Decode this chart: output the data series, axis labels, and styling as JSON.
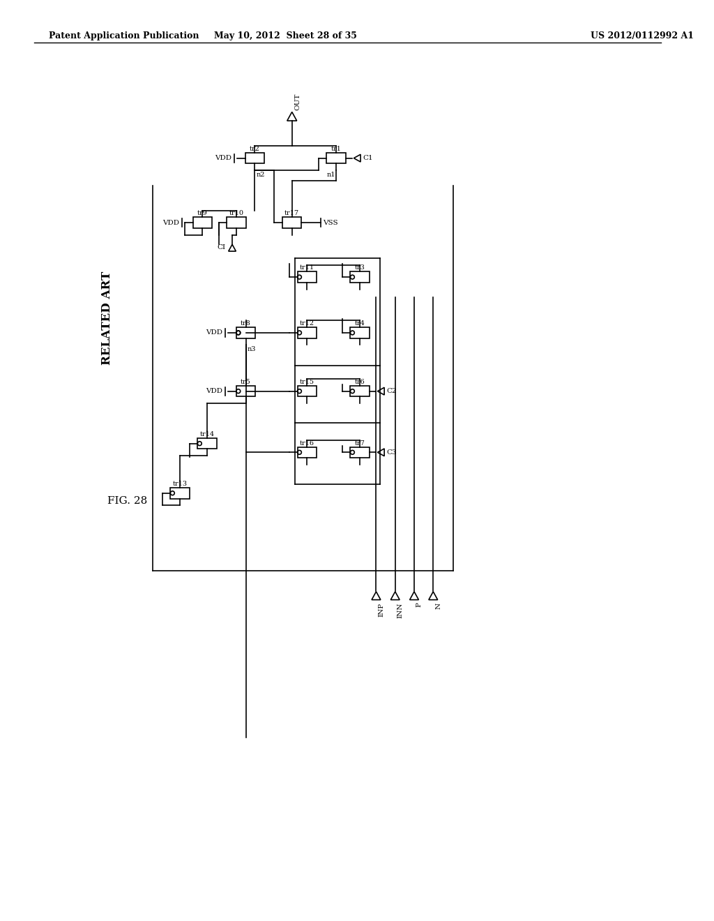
{
  "title_left": "Patent Application Publication",
  "title_mid": "May 10, 2012  Sheet 28 of 35",
  "title_right": "US 2012/0112992 A1",
  "fig_label": "FIG. 28",
  "related_art": "RELATED ART",
  "background_color": "#ffffff",
  "line_color": "#000000",
  "font_color": "#000000",
  "lw": 1.2
}
